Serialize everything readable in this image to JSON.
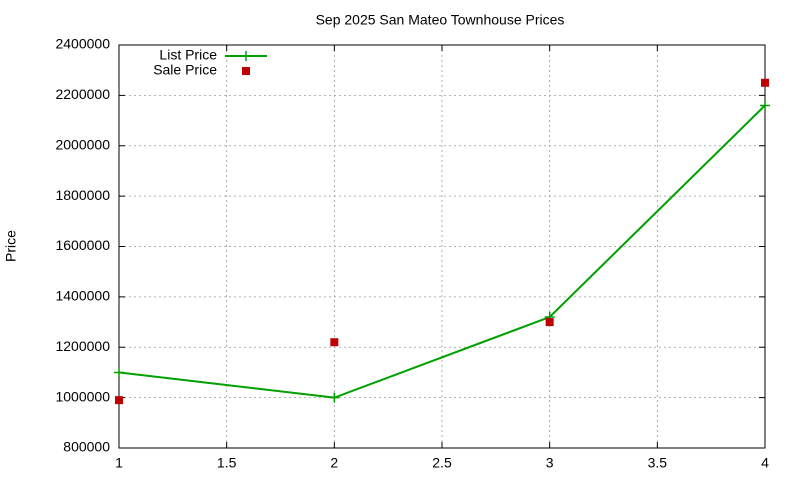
{
  "chart_data": {
    "type": "line",
    "title": "Sep 2025 San Mateo Townhouse Prices",
    "y_label": "Price",
    "x": [
      1,
      2,
      3,
      4
    ],
    "series": [
      {
        "name": "List Price",
        "color": "#00a000",
        "mode": "linespoints",
        "values": [
          1100000,
          1000000,
          1320000,
          2160000
        ]
      },
      {
        "name": "Sale Price",
        "color": "#c00000",
        "mode": "points",
        "values": [
          990000,
          1220000,
          1300000,
          2250000
        ]
      }
    ],
    "xlim": [
      1,
      4
    ],
    "xticks": [
      1,
      1.5,
      2,
      2.5,
      3,
      3.5,
      4
    ],
    "ylim": [
      800000,
      2400000
    ],
    "yticks": [
      800000,
      1000000,
      1200000,
      1400000,
      1600000,
      1800000,
      2000000,
      2200000,
      2400000
    ],
    "grid": true,
    "legend": "top-left"
  }
}
